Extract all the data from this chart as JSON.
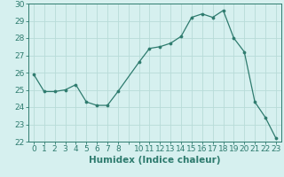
{
  "x": [
    0,
    1,
    2,
    3,
    4,
    5,
    6,
    7,
    8,
    10,
    11,
    12,
    13,
    14,
    15,
    16,
    17,
    18,
    19,
    20,
    21,
    22,
    23
  ],
  "y": [
    25.9,
    24.9,
    24.9,
    25.0,
    25.3,
    24.3,
    24.1,
    24.1,
    24.9,
    26.6,
    27.4,
    27.5,
    27.7,
    28.1,
    29.2,
    29.4,
    29.2,
    29.6,
    28.0,
    27.2,
    24.3,
    23.4,
    22.2
  ],
  "line_color": "#2e7b6e",
  "marker_color": "#2e7b6e",
  "bg_color": "#d6f0ef",
  "grid_color": "#b8dbd8",
  "axis_color": "#2e7b6e",
  "xlabel": "Humidex (Indice chaleur)",
  "ylim": [
    22,
    30
  ],
  "yticks": [
    22,
    23,
    24,
    25,
    26,
    27,
    28,
    29,
    30
  ],
  "xlabel_fontsize": 7.5,
  "tick_fontsize": 6.5
}
